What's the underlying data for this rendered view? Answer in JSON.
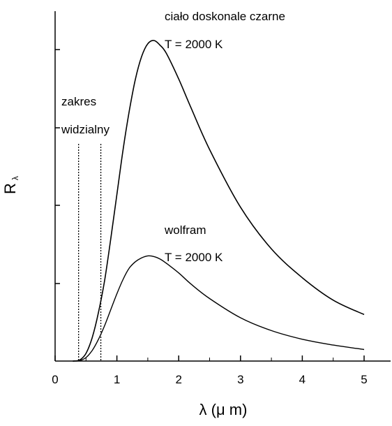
{
  "chart_data": {
    "type": "line",
    "title": "",
    "xlabel": "λ (μ m)",
    "ylabel": "R",
    "ylabel_subscript": "λ",
    "xlim": [
      0,
      5.5
    ],
    "ylim": [
      0,
      1.0
    ],
    "x_ticks": [
      "0",
      "1",
      "2",
      "3",
      "4",
      "5"
    ],
    "grid": false,
    "y_tick_labels_shown": false,
    "visible_range": {
      "label": [
        "zakres",
        "widzialny"
      ],
      "x_from": 0.38,
      "x_to": 0.74
    },
    "series": [
      {
        "annotation": [
          "ciało doskonale czarne",
          "T = 2000 K"
        ],
        "line_style": "solid",
        "x": [
          0.3,
          0.4,
          0.5,
          0.6,
          0.7,
          0.8,
          0.9,
          1.0,
          1.1,
          1.2,
          1.3,
          1.4,
          1.5,
          1.6,
          1.7,
          1.8,
          2.0,
          2.2,
          2.5,
          3.0,
          3.5,
          4.0,
          4.5,
          5.0
        ],
        "values": [
          0.0001,
          0.0035,
          0.024,
          0.073,
          0.15,
          0.25,
          0.38,
          0.52,
          0.66,
          0.78,
          0.88,
          0.95,
          0.99,
          1.0,
          0.985,
          0.96,
          0.88,
          0.79,
          0.66,
          0.48,
          0.35,
          0.26,
          0.19,
          0.145
        ]
      },
      {
        "annotation": [
          "wolfram",
          "T = 2000 K"
        ],
        "line_style": "solid",
        "x": [
          0.3,
          0.4,
          0.5,
          0.6,
          0.7,
          0.8,
          0.9,
          1.0,
          1.1,
          1.2,
          1.3,
          1.4,
          1.5,
          1.6,
          1.7,
          1.8,
          2.0,
          2.2,
          2.5,
          3.0,
          3.5,
          4.0,
          4.5,
          5.0
        ],
        "values": [
          0.0,
          0.0015,
          0.011,
          0.033,
          0.067,
          0.11,
          0.16,
          0.21,
          0.255,
          0.29,
          0.31,
          0.322,
          0.328,
          0.326,
          0.318,
          0.305,
          0.275,
          0.24,
          0.195,
          0.135,
          0.095,
          0.068,
          0.05,
          0.036
        ]
      }
    ]
  }
}
